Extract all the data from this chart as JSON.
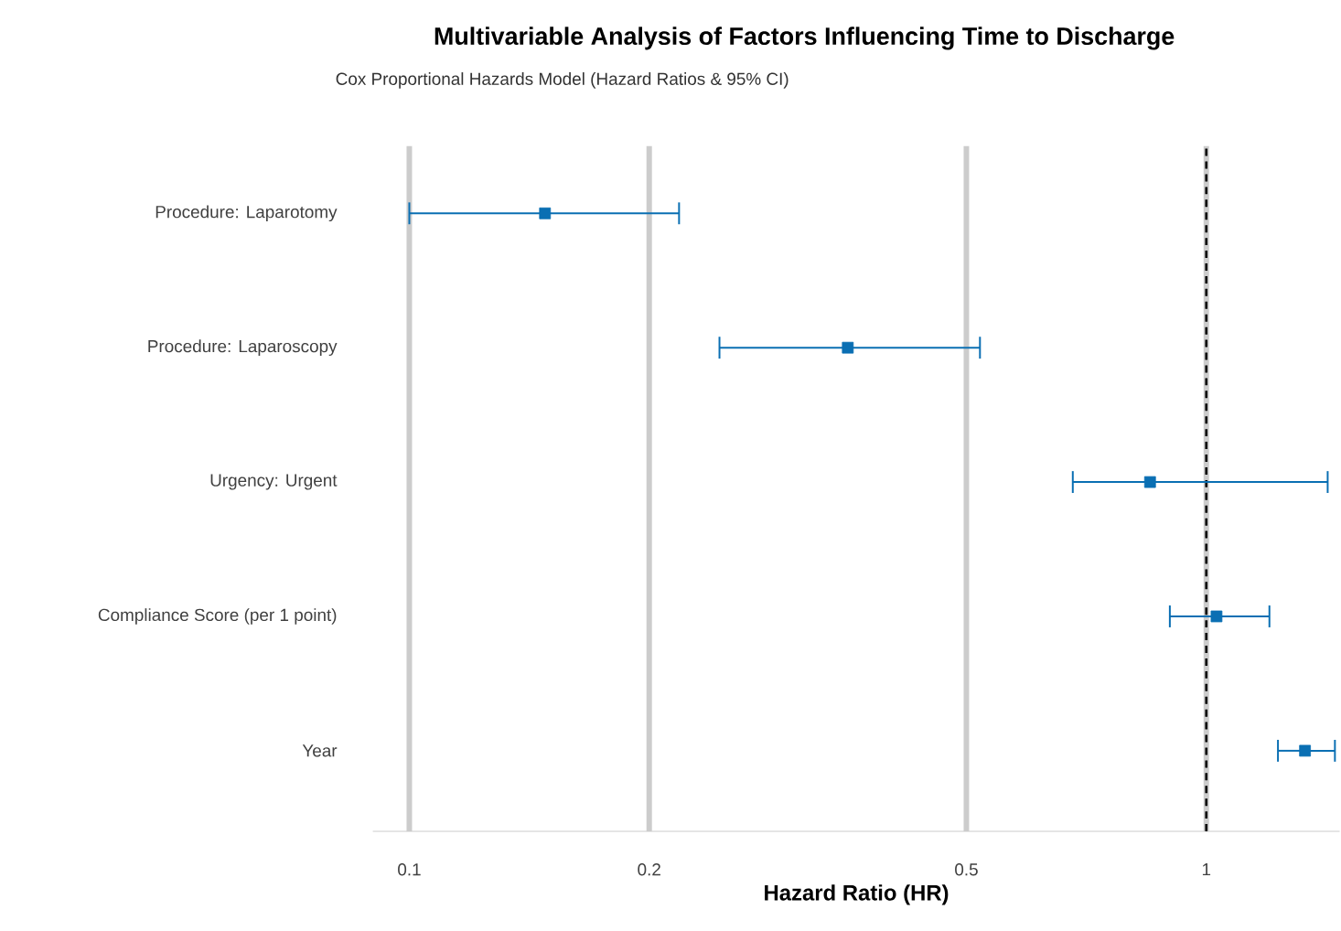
{
  "chart_data": {
    "type": "scatter",
    "orientation": "horizontal",
    "title": "Multivariable Analysis of Factors Influencing Time to Discharge",
    "subtitle": "Cox Proportional Hazards Model (Hazard Ratios & 95% CI)",
    "xlabel": "Hazard Ratio (HR)",
    "categories": [
      "Procedure: Laparotomy",
      "Procedure: Laparoscopy",
      "Urgency: Urgent",
      "Compliance Score (per 1 point)",
      "Year"
    ],
    "values": [
      0.148,
      0.355,
      0.85,
      1.03,
      1.33
    ],
    "errors": [
      [
        0.1,
        0.218
      ],
      [
        0.245,
        0.52
      ],
      [
        0.68,
        1.42
      ],
      [
        0.9,
        1.2
      ],
      [
        1.23,
        1.45
      ]
    ],
    "color": "#0a6fb3",
    "marker": "square",
    "log": "x",
    "grid": "x",
    "xlim": [
      0.09,
      1.47
    ],
    "xticks": [
      0.1,
      0.2,
      0.5,
      1
    ],
    "ref_lines": [
      {
        "axis": "x",
        "value": 1,
        "color": "#000000",
        "line_style": "dashed"
      }
    ]
  }
}
